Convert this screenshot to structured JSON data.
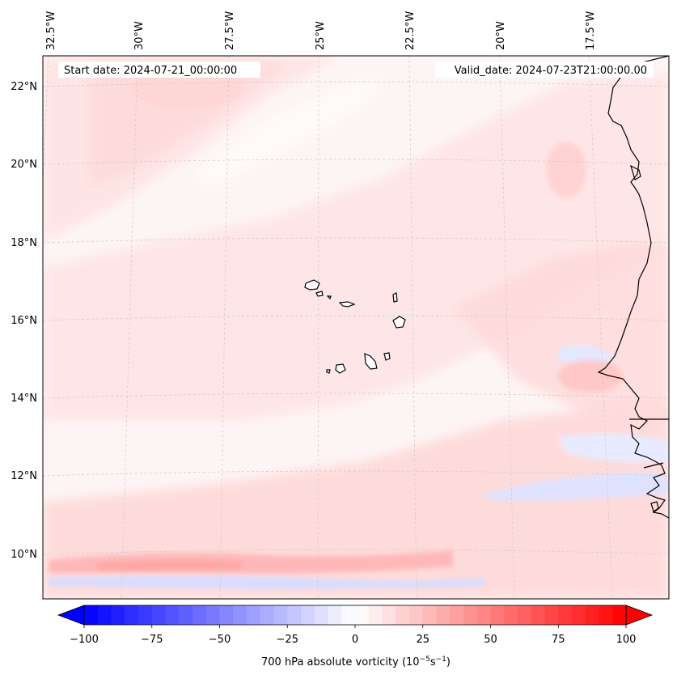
{
  "header": {
    "start_date": "Start date: 2024-07-21_00:00:00",
    "valid_date": "Valid_date: 2024-07-23T21:00:00.00"
  },
  "map": {
    "lon_labels": [
      "32.5°W",
      "30°W",
      "27.5°W",
      "25°W",
      "22.5°W",
      "20°W",
      "17.5°W"
    ],
    "lat_labels": [
      "22°N",
      "20°N",
      "18°N",
      "16°N",
      "14°N",
      "12°N",
      "10°N"
    ],
    "field_color_positive": "#ff0000",
    "field_color_negative": "#0000ff",
    "coastline_color": "#000000"
  },
  "colorbar": {
    "ticks": [
      "−100",
      "−75",
      "−50",
      "−25",
      "0",
      "25",
      "50",
      "75",
      "100"
    ],
    "label": "700 hPa absolute vorticity (10",
    "label_exp1": "−5",
    "label_mid": "s",
    "label_exp2": "−1",
    "label_end": ")",
    "min": -100,
    "max": 100,
    "colormap": "bwr"
  }
}
